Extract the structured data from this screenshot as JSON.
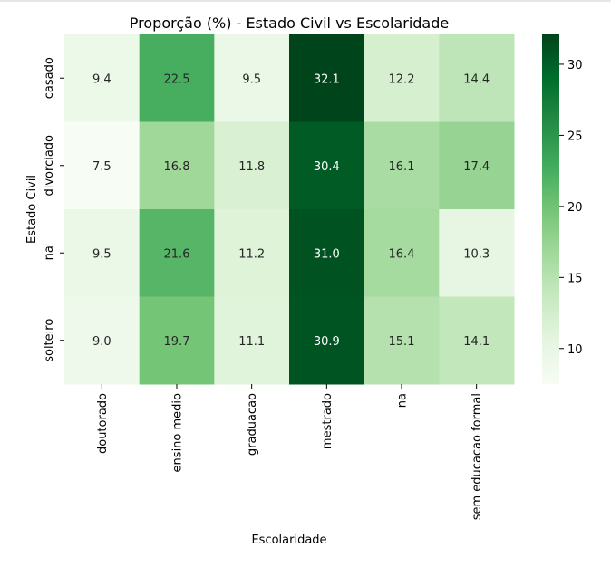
{
  "chart_data": {
    "type": "heatmap",
    "title": "Proporção (%) - Estado Civil vs Escolaridade",
    "xlabel": "Escolaridade",
    "ylabel": "Estado Civil",
    "x_categories": [
      "doutorado",
      "ensino medio",
      "graduacao",
      "mestrado",
      "na",
      "sem educacao formal"
    ],
    "y_categories": [
      "casado",
      "divorciado",
      "na",
      "solteiro"
    ],
    "values": [
      [
        9.4,
        22.5,
        9.5,
        32.1,
        12.2,
        14.4
      ],
      [
        7.5,
        16.8,
        11.8,
        30.4,
        16.1,
        17.4
      ],
      [
        9.5,
        21.6,
        11.2,
        31.0,
        16.4,
        10.3
      ],
      [
        9.0,
        19.7,
        11.1,
        30.9,
        15.1,
        14.1
      ]
    ],
    "colorbar": {
      "colormap": "Greens",
      "vmin": 7.5,
      "vmax": 32.1,
      "ticks": [
        10,
        15,
        20,
        25,
        30
      ]
    },
    "annotation_format": "0.0"
  }
}
